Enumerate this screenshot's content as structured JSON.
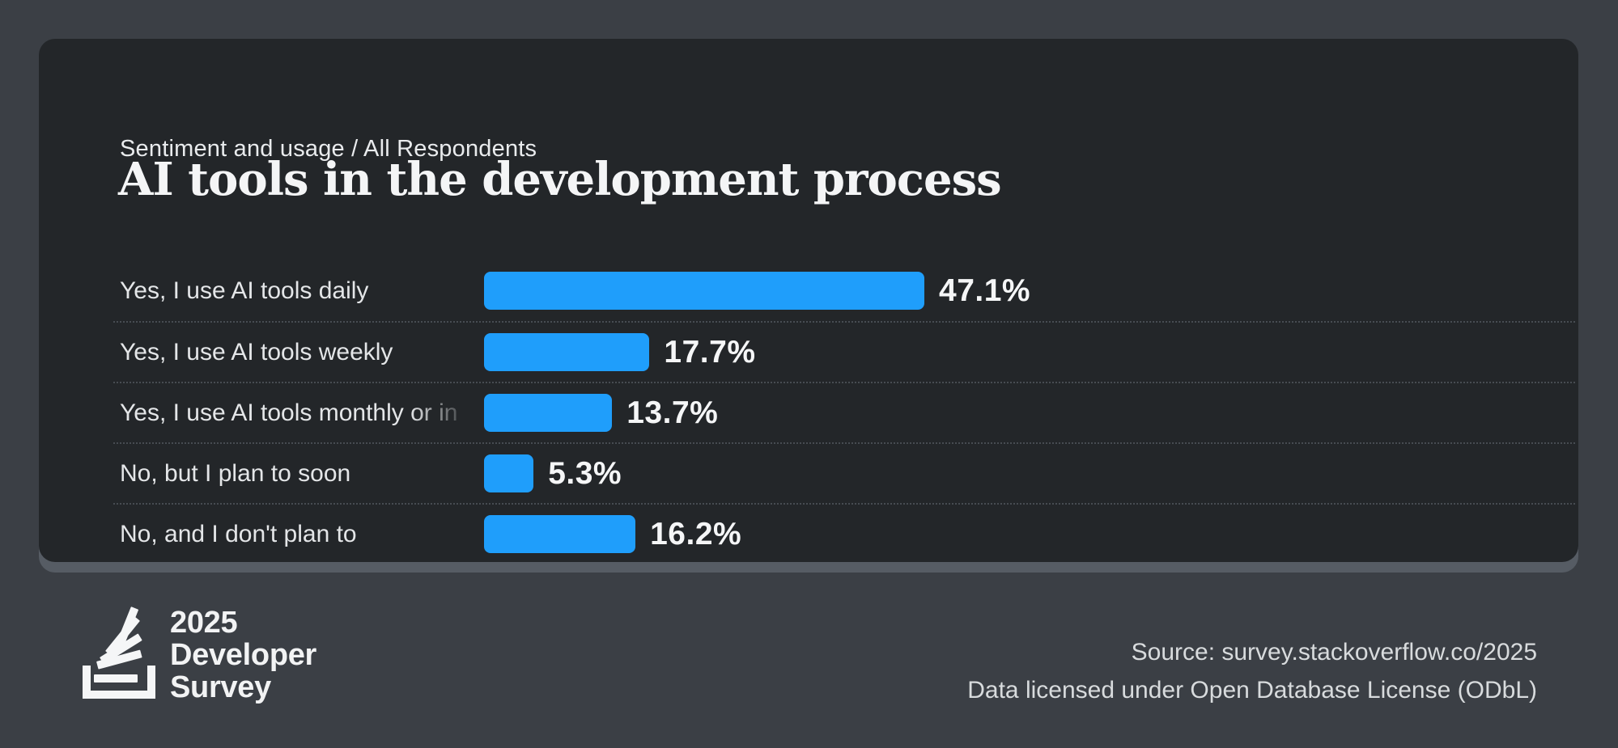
{
  "header": {
    "breadcrumb": "Sentiment and usage / All Respondents",
    "title": "AI tools in the development process"
  },
  "chart_data": {
    "type": "bar",
    "orientation": "horizontal",
    "title": "AI tools in the development process",
    "categories": [
      "Yes, I use AI tools daily",
      "Yes, I use AI tools weekly",
      "Yes, I use AI tools monthly or in",
      "No, but I plan to soon",
      "No, and I don't plan to"
    ],
    "categories_truncated": [
      false,
      false,
      true,
      false,
      false
    ],
    "values": [
      47.1,
      17.7,
      13.7,
      5.3,
      16.2
    ],
    "value_labels": [
      "47.1%",
      "17.7%",
      "13.7%",
      "5.3%",
      "16.2%"
    ],
    "xlim": [
      0,
      50
    ],
    "grid": false,
    "legend": "none",
    "bar_color": "#1f9efb"
  },
  "footer": {
    "logo": {
      "icon": "stackoverflow-logo",
      "year": "2025",
      "word1": "Developer",
      "word2": "Survey"
    },
    "source_line1": "Source: survey.stackoverflow.co/2025",
    "source_line2": "Data licensed under Open Database License (ODbL)"
  },
  "colors": {
    "page_background": "#3b3f45",
    "card_background": "#232629",
    "card_shadow": "#565c64",
    "bar": "#1f9efb",
    "label_text": "#e4e6e8",
    "value_text": "#f5f6f7",
    "title_text": "#f4f5f6",
    "footer_text": "#d8dbdd",
    "separator": "#474c52"
  }
}
